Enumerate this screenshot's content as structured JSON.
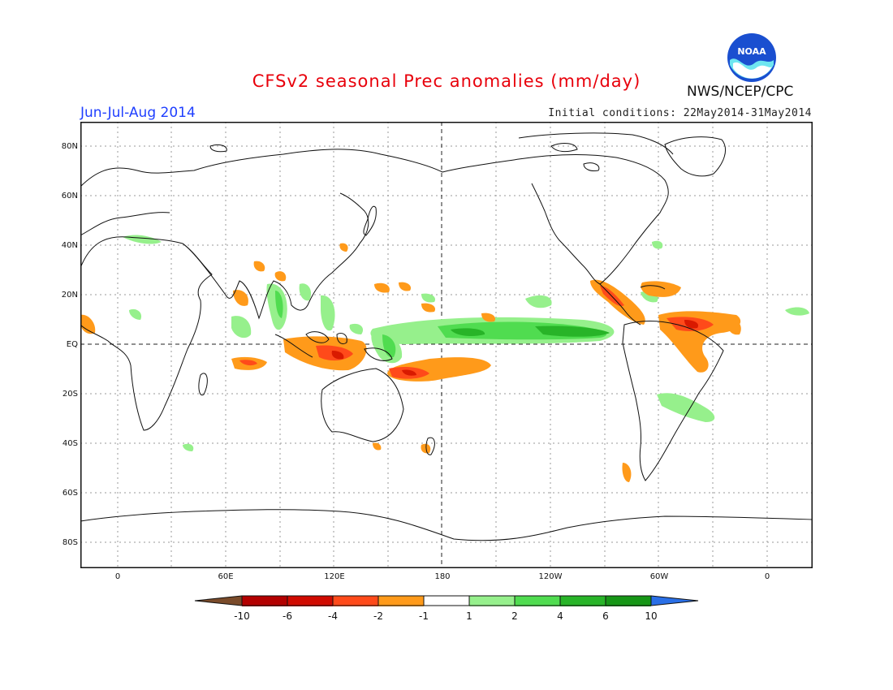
{
  "header": {
    "title": "CFSv2 seasonal Prec anomalies (mm/day)",
    "season": "Jun-Jul-Aug 2014",
    "initial_conditions": "Initial conditions: 22May2014-31May2014",
    "agency": "NWS/NCEP/CPC",
    "logo_text": "NOAA"
  },
  "axes": {
    "lat_labels": [
      "80N",
      "60N",
      "40N",
      "20N",
      "EQ",
      "20S",
      "40S",
      "60S",
      "80S"
    ],
    "lon_labels": [
      "0",
      "60E",
      "120E",
      "180",
      "120W",
      "60W",
      "0"
    ]
  },
  "legend": {
    "tick_labels": [
      "-10",
      "-6",
      "-4",
      "-2",
      "-1",
      "1",
      "2",
      "4",
      "6",
      "10"
    ],
    "colors": [
      "#7a4b2a",
      "#b30000",
      "#d91a00",
      "#ff4a1a",
      "#ff9a1a",
      "#ffffff",
      "#96f08c",
      "#50dc50",
      "#28b428",
      "#169616",
      "#2a6fe6"
    ]
  },
  "colors": {
    "title": "#e8000b",
    "season": "#1f3fff",
    "dry_moderate": "#ff9a1a",
    "dry_strong": "#ff4a1a",
    "dry_severe": "#d91a00",
    "wet_light": "#96f08c",
    "wet_moderate": "#50dc50",
    "wet_strong": "#28b428"
  }
}
